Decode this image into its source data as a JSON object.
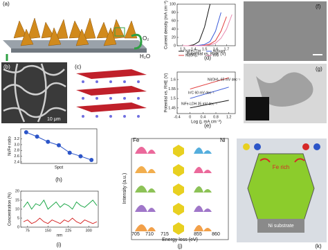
{
  "labels": {
    "a": "(a)",
    "b": "(b)",
    "c": "(c)",
    "f": "(f)",
    "g": "(g)",
    "o2": "O₂",
    "h2o": "H₂O",
    "scale_b": "10 μm",
    "fe": "Fe",
    "ni": "Ni",
    "j": "(j)",
    "j_x_label": "Energy loss (eV)",
    "j_y_label": "Intensity (a.u.)",
    "j_xticks": [
      705,
      710,
      715,
      855,
      860
    ],
    "k": "(k)",
    "fe_rich": "Fe rich",
    "ni_substrate": "Ni substrate"
  },
  "chart_data": [
    {
      "type": "line",
      "panel": "(d)",
      "x_label": "Potential vs. RHE (V)",
      "y_label": "Current density (mA cm⁻²)",
      "x": [
        1.3,
        1.35,
        1.4,
        1.45,
        1.5,
        1.55,
        1.6,
        1.65,
        1.7,
        1.75
      ],
      "series": [
        {
          "name": "NiFe-LDH",
          "color": "#111111",
          "values": [
            0,
            0,
            2,
            10,
            45,
            100,
            null,
            null,
            null,
            null
          ]
        },
        {
          "name": "Ni(OH)₂",
          "color": "#e23b3b",
          "values": [
            0,
            0,
            0,
            0,
            1,
            4,
            12,
            35,
            70,
            null
          ]
        },
        {
          "name": "Ni foam",
          "color": "#3b5bd9",
          "values": [
            0,
            0,
            0,
            1,
            3,
            10,
            35,
            80,
            null,
            null
          ]
        },
        {
          "name": "Ir/C",
          "color": "#e889b0",
          "values": [
            0,
            0,
            0,
            0,
            0,
            2,
            6,
            18,
            40,
            75
          ]
        }
      ],
      "xlim": [
        1.25,
        1.78
      ],
      "ylim": [
        0,
        100
      ],
      "xticks": [
        1.3,
        1.4,
        1.5,
        1.6,
        1.7
      ],
      "yticks": [
        0,
        20,
        40,
        60,
        80,
        100
      ]
    },
    {
      "type": "line",
      "panel": "(e)",
      "x_label": "Log (j, mA cm⁻²)",
      "y_label": "Potential vs. RHE (V)",
      "x": [
        0,
        1.2
      ],
      "series": [
        {
          "name": "Ni(OH)₂ 65 mV dec⁻¹",
          "color": "#e23b3b",
          "values": [
            1.55,
            1.61
          ]
        },
        {
          "name": "Ir/C 60 mV dec⁻¹",
          "color": "#3b5bd9",
          "values": [
            1.5,
            1.56
          ]
        },
        {
          "name": "NiFe-LDH 35 mV dec⁻¹",
          "color": "#111111",
          "values": [
            1.45,
            1.49
          ]
        }
      ],
      "xlim": [
        -0.4,
        1.4
      ],
      "ylim": [
        1.42,
        1.64
      ],
      "xticks": [
        -0.4,
        0,
        0.4,
        0.8,
        1.2
      ],
      "yticks": [
        1.45,
        1.5,
        1.55,
        1.6
      ]
    },
    {
      "type": "line",
      "panel": "(h)",
      "x_label": "Spot",
      "y_label": "Ni/Fe ratio",
      "markers": true,
      "x": [
        1,
        2,
        3,
        4,
        5,
        6,
        7
      ],
      "series": [
        {
          "color": "#2c55c8",
          "values": [
            3.43,
            3.28,
            3.1,
            2.98,
            2.72,
            2.6,
            2.47
          ]
        }
      ],
      "xlim": [
        0.5,
        7.5
      ],
      "ylim": [
        2.35,
        3.55
      ],
      "xticks": [],
      "yticks": [
        {
          "value": 2.4,
          "label": "2.4"
        },
        {
          "value": 2.6,
          "label": "2.6"
        },
        {
          "value": 2.8,
          "label": "2.8"
        },
        {
          "value": 3,
          "label": "3.0"
        },
        {
          "value": 3.2,
          "label": "3.2"
        }
      ]
    },
    {
      "type": "line",
      "panel": "(i)",
      "x_label": "nm",
      "y_label": "Concentration (%)",
      "x": [
        60,
        75,
        90,
        105,
        120,
        135,
        150,
        165,
        180,
        195,
        210,
        225,
        240,
        255,
        270,
        285,
        300,
        315,
        330
      ],
      "series": [
        {
          "color": "#1fa84a",
          "values": [
            11,
            14,
            10,
            13,
            12,
            15,
            10,
            12,
            14,
            11,
            13,
            12,
            10,
            14,
            12,
            11,
            13,
            15,
            12
          ]
        },
        {
          "color": "#d62828",
          "values": [
            3,
            4,
            2,
            3,
            5,
            3,
            2,
            4,
            3,
            2,
            4,
            3,
            5,
            3,
            2,
            4,
            3,
            2,
            3
          ]
        }
      ],
      "xlim": [
        50,
        335
      ],
      "ylim": [
        0,
        20
      ],
      "xticks": [
        75,
        150,
        225,
        300
      ],
      "yticks": [
        0,
        5,
        10,
        15,
        20
      ]
    }
  ]
}
